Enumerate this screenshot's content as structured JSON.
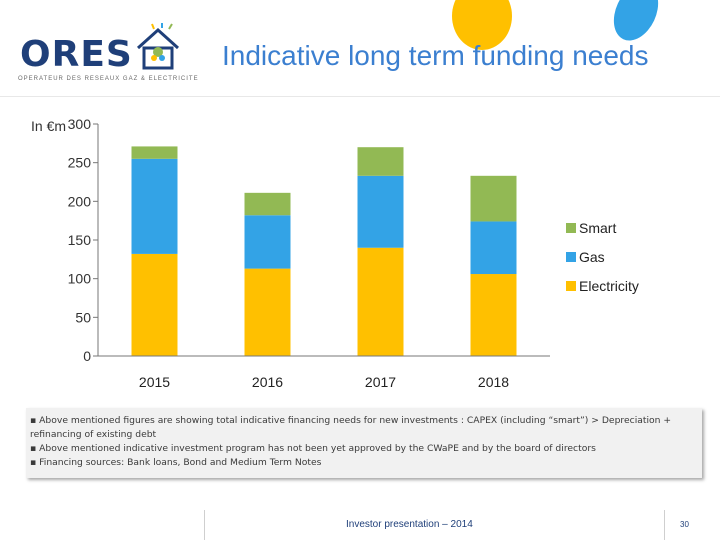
{
  "header": {
    "logo_text": "ORES",
    "logo_subtitle": "OPERATEUR DES RESEAUX GAZ & ELECTRICITE",
    "title": "Indicative long term funding needs"
  },
  "chart_data": {
    "type": "bar",
    "stacked": true,
    "unit_label": "In €m",
    "categories": [
      "2015",
      "2016",
      "2017",
      "2018"
    ],
    "series": [
      {
        "name": "Electricity",
        "color": "#ffc000",
        "values": [
          132,
          113,
          140,
          106
        ]
      },
      {
        "name": "Gas",
        "color": "#33a3e6",
        "values": [
          123,
          69,
          93,
          68
        ]
      },
      {
        "name": "Smart",
        "color": "#92b954",
        "values": [
          16,
          29,
          37,
          59
        ]
      }
    ],
    "ylim": [
      0,
      300
    ],
    "yticks": [
      "0",
      "50",
      "100",
      "150",
      "200",
      "250"
    ],
    "legend_position": "right",
    "grid": false
  },
  "notes": [
    "▪ Above mentioned figures are showing total indicative financing needs for new investments : CAPEX (including “smart”) > Depreciation + refinancing of existing debt",
    "▪ Above mentioned indicative investment program has not been yet approved by the CWaPE and by the board of directors",
    "▪ Financing sources: Bank loans, Bond and Medium Term Notes"
  ],
  "footer": {
    "text": "Investor presentation – 2014",
    "page": "30"
  }
}
